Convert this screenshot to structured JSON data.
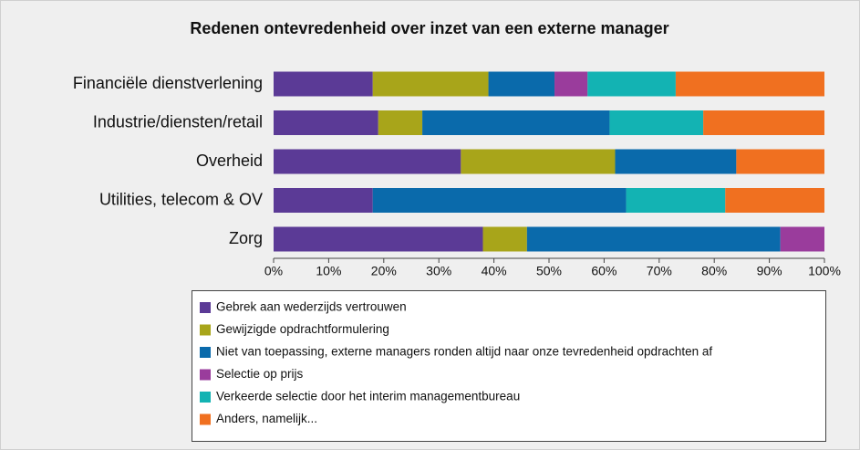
{
  "chart_data": {
    "type": "stacked_barh",
    "title": "Redenen ontevredenheid over inzet van een externe manager",
    "categories": [
      "Financiële dienstverlening",
      "Industrie/diensten/retail",
      "Overheid",
      "Utilities, telecom & OV",
      "Zorg"
    ],
    "series": [
      {
        "name": "Gebrek aan wederzijds vertrouwen",
        "color": "#5b3a96",
        "values": [
          18,
          19,
          34,
          18,
          38
        ]
      },
      {
        "name": "Gewijzigde opdrachtformulering",
        "color": "#a8a51a",
        "values": [
          21,
          8,
          28,
          0,
          8
        ]
      },
      {
        "name": "Niet van toepassing, externe managers ronden altijd naar onze tevredenheid opdrachten af",
        "color": "#0a6aab",
        "values": [
          12,
          34,
          22,
          46,
          46
        ]
      },
      {
        "name": "Selectie op prijs",
        "color": "#9a3c9c",
        "values": [
          6,
          0,
          0,
          0,
          8
        ]
      },
      {
        "name": "Verkeerde selectie door het interim managementbureau",
        "color": "#13b3b3",
        "values": [
          16,
          17,
          0,
          18,
          0
        ]
      },
      {
        "name": "Anders, namelijk...",
        "color": "#f07020",
        "values": [
          27,
          22,
          16,
          18,
          0
        ]
      }
    ],
    "xlim": [
      0,
      100
    ],
    "xticks": [
      {
        "value": 0,
        "label": "0%"
      },
      {
        "value": 10,
        "label": "10%"
      },
      {
        "value": 20,
        "label": "20%"
      },
      {
        "value": 30,
        "label": "30%"
      },
      {
        "value": 40,
        "label": "40%"
      },
      {
        "value": 50,
        "label": "50%"
      },
      {
        "value": 60,
        "label": "60%"
      },
      {
        "value": 70,
        "label": "70%"
      },
      {
        "value": 80,
        "label": "80%"
      },
      {
        "value": 90,
        "label": "90%"
      },
      {
        "value": 100,
        "label": "100%"
      }
    ]
  }
}
